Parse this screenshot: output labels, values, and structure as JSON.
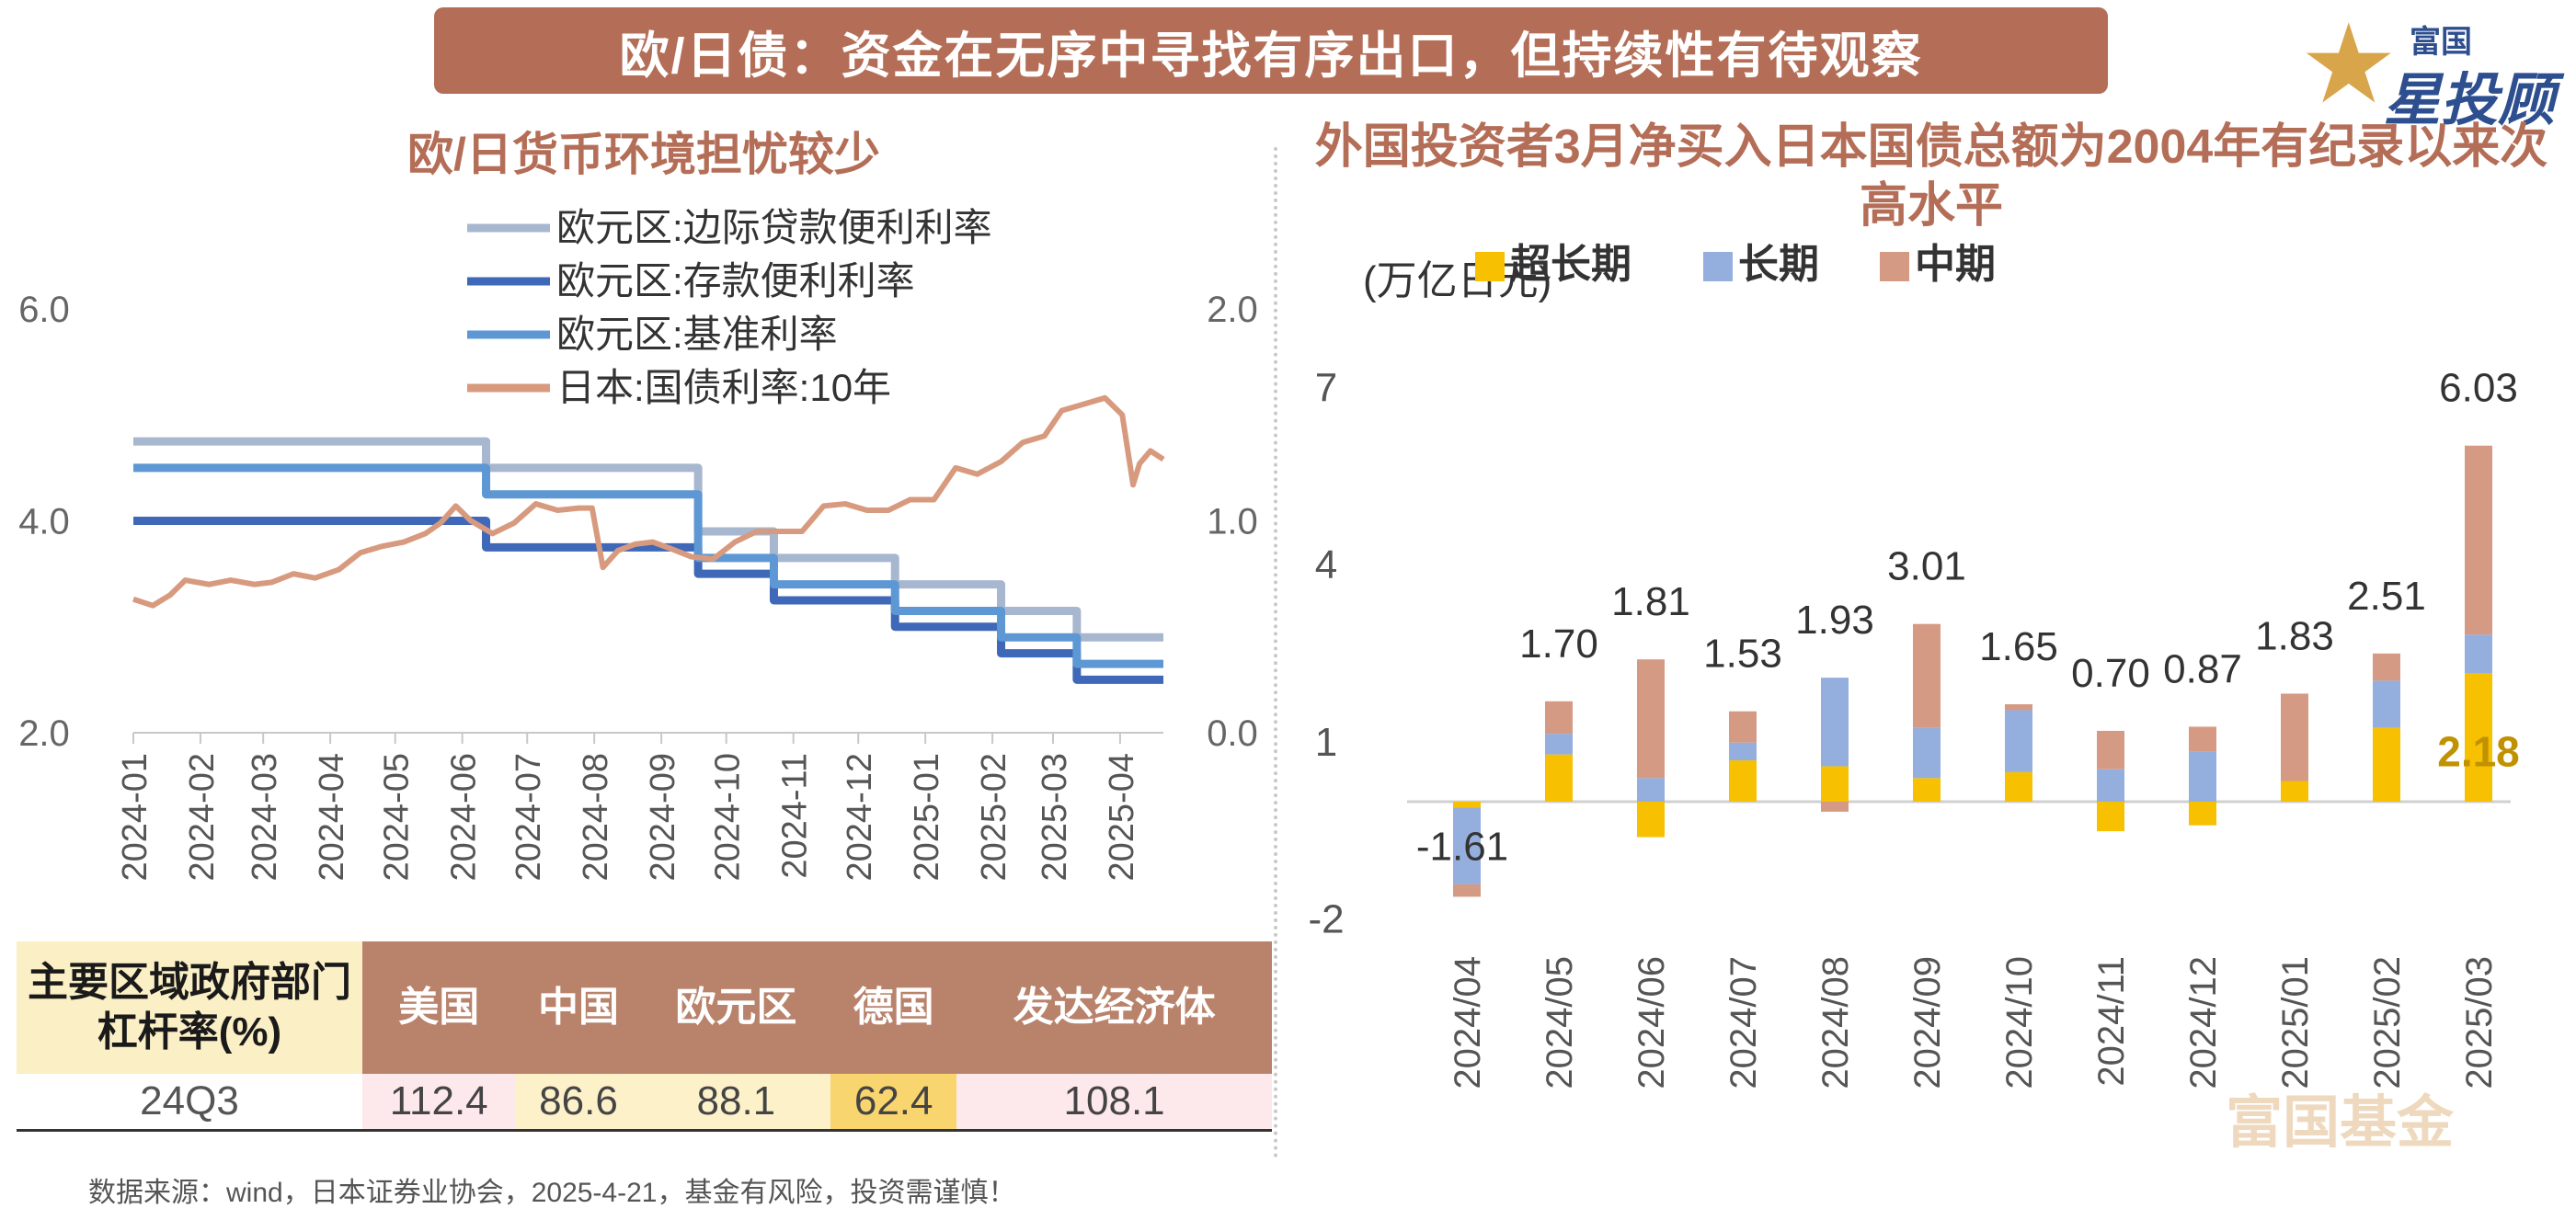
{
  "title": "欧/日债：资金在无序中寻找有序出口，但持续性有待观察",
  "logo": {
    "line1": "富国",
    "line2": "星投顾",
    "icon": "star-icon"
  },
  "left_panel": {
    "title": "欧/日货币环境担忧较少"
  },
  "right_panel": {
    "title": "外国投资者3月净买入日本国债总额为2004年有纪录以来次高水平",
    "unit": "(万亿日元)"
  },
  "chart_data": [
    {
      "type": "line",
      "x_ticks": [
        "2024-01",
        "2024-02",
        "2024-03",
        "2024-04",
        "2024-05",
        "2024-06",
        "2024-07",
        "2024-08",
        "2024-09",
        "2024-10",
        "2024-11",
        "2024-12",
        "2025-01",
        "2025-02",
        "2025-03",
        "2025-04"
      ],
      "y_left_ticks": [
        "2.0",
        "4.0",
        "6.0"
      ],
      "y_left_lim": [
        2.0,
        6.0
      ],
      "y_right_ticks": [
        "0.0",
        "1.0",
        "2.0"
      ],
      "y_right_lim": [
        0.0,
        2.0
      ],
      "x_range": [
        "2024-01-01",
        "2025-04-21"
      ],
      "legend_position": "top",
      "series": [
        {
          "name": "欧元区:边际贷款便利利率",
          "axis": "left",
          "color": "#a7b7cf",
          "step": true,
          "points": [
            [
              "2024-01-01",
              4.75
            ],
            [
              "2024-06-12",
              4.5
            ],
            [
              "2024-09-18",
              3.9
            ],
            [
              "2024-10-23",
              3.65
            ],
            [
              "2024-12-18",
              3.4
            ],
            [
              "2025-02-05",
              3.15
            ],
            [
              "2025-03-12",
              2.9
            ],
            [
              "2025-04-21",
              2.9
            ]
          ]
        },
        {
          "name": "欧元区:存款便利利率",
          "axis": "left",
          "color": "#3f68b8",
          "step": true,
          "points": [
            [
              "2024-01-01",
              4.0
            ],
            [
              "2024-06-12",
              3.75
            ],
            [
              "2024-09-18",
              3.5
            ],
            [
              "2024-10-23",
              3.25
            ],
            [
              "2024-12-18",
              3.0
            ],
            [
              "2025-02-05",
              2.75
            ],
            [
              "2025-03-12",
              2.5
            ],
            [
              "2025-04-21",
              2.5
            ]
          ]
        },
        {
          "name": "欧元区:基准利率",
          "axis": "left",
          "color": "#5d98d4",
          "step": true,
          "points": [
            [
              "2024-01-01",
              4.5
            ],
            [
              "2024-06-12",
              4.25
            ],
            [
              "2024-09-18",
              3.65
            ],
            [
              "2024-10-23",
              3.4
            ],
            [
              "2024-12-18",
              3.15
            ],
            [
              "2025-02-05",
              2.9
            ],
            [
              "2025-03-12",
              2.65
            ],
            [
              "2025-04-21",
              2.65
            ]
          ]
        },
        {
          "name": "日本:国债利率:10年",
          "axis": "right",
          "color": "#d89a7e",
          "step": false,
          "points": [
            [
              "2024-01-01",
              0.63
            ],
            [
              "2024-01-10",
              0.6
            ],
            [
              "2024-01-18",
              0.65
            ],
            [
              "2024-01-25",
              0.72
            ],
            [
              "2024-02-05",
              0.7
            ],
            [
              "2024-02-15",
              0.72
            ],
            [
              "2024-02-26",
              0.7
            ],
            [
              "2024-03-05",
              0.71
            ],
            [
              "2024-03-15",
              0.75
            ],
            [
              "2024-03-25",
              0.73
            ],
            [
              "2024-04-05",
              0.77
            ],
            [
              "2024-04-15",
              0.85
            ],
            [
              "2024-04-25",
              0.88
            ],
            [
              "2024-05-05",
              0.9
            ],
            [
              "2024-05-15",
              0.94
            ],
            [
              "2024-05-22",
              0.99
            ],
            [
              "2024-05-29",
              1.07
            ],
            [
              "2024-06-05",
              1.0
            ],
            [
              "2024-06-15",
              0.94
            ],
            [
              "2024-06-25",
              0.99
            ],
            [
              "2024-07-05",
              1.08
            ],
            [
              "2024-07-15",
              1.05
            ],
            [
              "2024-07-25",
              1.06
            ],
            [
              "2024-07-31",
              1.06
            ],
            [
              "2024-08-05",
              0.78
            ],
            [
              "2024-08-12",
              0.86
            ],
            [
              "2024-08-20",
              0.89
            ],
            [
              "2024-08-28",
              0.9
            ],
            [
              "2024-09-05",
              0.87
            ],
            [
              "2024-09-15",
              0.83
            ],
            [
              "2024-09-25",
              0.82
            ],
            [
              "2024-10-05",
              0.9
            ],
            [
              "2024-10-15",
              0.95
            ],
            [
              "2024-10-25",
              0.95
            ],
            [
              "2024-11-05",
              0.95
            ],
            [
              "2024-11-15",
              1.07
            ],
            [
              "2024-11-25",
              1.08
            ],
            [
              "2024-12-05",
              1.05
            ],
            [
              "2024-12-15",
              1.05
            ],
            [
              "2024-12-25",
              1.1
            ],
            [
              "2025-01-05",
              1.1
            ],
            [
              "2025-01-15",
              1.25
            ],
            [
              "2025-01-25",
              1.22
            ],
            [
              "2025-02-05",
              1.28
            ],
            [
              "2025-02-15",
              1.37
            ],
            [
              "2025-02-25",
              1.4
            ],
            [
              "2025-03-05",
              1.52
            ],
            [
              "2025-03-15",
              1.55
            ],
            [
              "2025-03-25",
              1.58
            ],
            [
              "2025-04-02",
              1.5
            ],
            [
              "2025-04-07",
              1.17
            ],
            [
              "2025-04-10",
              1.27
            ],
            [
              "2025-04-15",
              1.33
            ],
            [
              "2025-04-21",
              1.29
            ]
          ]
        }
      ]
    },
    {
      "type": "bar",
      "stacked": true,
      "categories": [
        "2024/04",
        "2024/05",
        "2024/06",
        "2024/07",
        "2024/08",
        "2024/09",
        "2024/10",
        "2024/11",
        "2024/12",
        "2025/01",
        "2025/02",
        "2025/03"
      ],
      "totals": [
        "-1.61",
        "1.70",
        "1.81",
        "1.53",
        "1.93",
        "3.01",
        "1.65",
        "0.70",
        "0.87",
        "1.83",
        "2.51",
        "6.03"
      ],
      "y_ticks": [
        "-2",
        "1",
        "4",
        "7"
      ],
      "y_lim": [
        -3,
        7
      ],
      "legend_position": "top",
      "series": [
        {
          "name": "超长期",
          "color": "#f7c000",
          "values": [
            -0.1,
            0.8,
            -0.6,
            0.7,
            0.6,
            0.4,
            0.5,
            -0.5,
            -0.4,
            0.35,
            1.25,
            2.18
          ]
        },
        {
          "name": "长期",
          "color": "#94aede",
          "values": [
            -1.3,
            0.35,
            0.4,
            0.3,
            1.5,
            0.85,
            1.05,
            0.55,
            0.85,
            0.0,
            0.8,
            0.65
          ]
        },
        {
          "name": "中期",
          "color": "#d49a84",
          "values": [
            -0.21,
            0.55,
            2.01,
            0.53,
            -0.17,
            1.76,
            0.1,
            0.65,
            0.42,
            1.48,
            0.46,
            3.2
          ]
        }
      ],
      "annotation": {
        "text": "2.18",
        "color": "#c09200"
      }
    }
  ],
  "table": {
    "header_label": "主要区域政府部门杠杆率(%)",
    "columns": [
      "美国",
      "中国",
      "欧元区",
      "德国",
      "发达经济体"
    ],
    "row_label": "24Q3",
    "values": [
      "112.4",
      "86.6",
      "88.1",
      "62.4",
      "108.1"
    ],
    "cell_colors": [
      "#fde9ec",
      "#fcf1c9",
      "#fcf1c9",
      "#f9d56f",
      "#fde9ec"
    ]
  },
  "footer": "数据来源：wind，日本证券业协会，2025-4-21，基金有风险，投资需谨慎！",
  "watermark": "富国基金"
}
